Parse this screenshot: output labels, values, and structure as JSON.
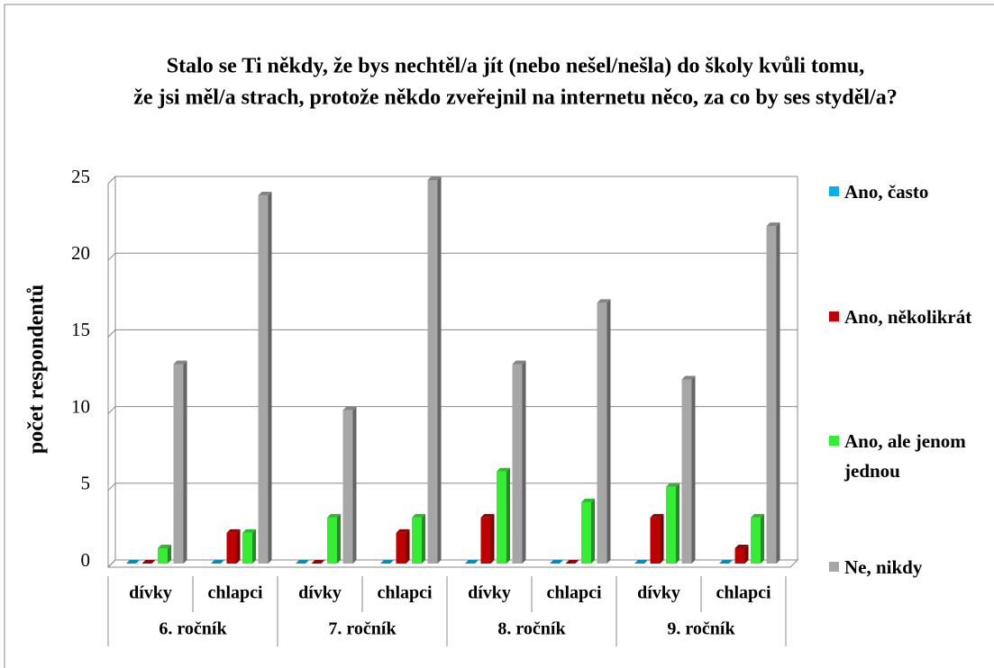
{
  "chart_data": {
    "type": "bar",
    "title": [
      "Stalo se Ti někdy, že bys nechtěl/a jít (nebo nešel/nešla) do školy kvůli tomu,",
      "že jsi měl/a strach, protože někdo zveřejnil na internetu něco, za co by ses styděl/a?"
    ],
    "y_label": "počet respondentů",
    "categories": [
      "dívky",
      "chlapci",
      "dívky",
      "chlapci",
      "dívky",
      "chlapci",
      "dívky",
      "chlapci"
    ],
    "groups": [
      "6. ročník",
      "7. ročník",
      "8. ročník",
      "9. ročník"
    ],
    "series": [
      {
        "name": "Ano, často",
        "color": "#00b0f0",
        "values": [
          0,
          0,
          0,
          0,
          0,
          0,
          0,
          0
        ]
      },
      {
        "name": "Ano, několikrát",
        "color": "#c00000",
        "values": [
          0,
          2,
          0,
          2,
          3,
          0,
          3,
          1
        ]
      },
      {
        "name": "Ano, ale jenom jednou",
        "color": "#33ee33",
        "values": [
          1,
          2,
          3,
          3,
          6,
          4,
          5,
          3
        ]
      },
      {
        "name": "Ne, nikdy",
        "color": "#a6a6a6",
        "values": [
          13,
          24,
          10,
          25,
          13,
          17,
          12,
          22
        ]
      }
    ],
    "ylim": [
      0,
      25
    ],
    "yticks": [
      0,
      5,
      10,
      15,
      20,
      25
    ],
    "grid": true,
    "legend": "right"
  }
}
